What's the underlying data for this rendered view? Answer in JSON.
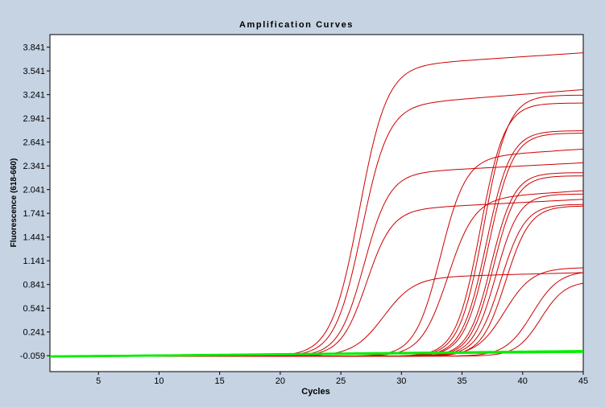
{
  "chart_data": {
    "type": "line",
    "title": "Amplification Curves",
    "xlabel": "Cycles",
    "ylabel": "Fluorescence (618-660)",
    "xlim": [
      1,
      45
    ],
    "ylim": [
      -0.26,
      4.0
    ],
    "x_ticks": [
      5,
      10,
      15,
      20,
      25,
      30,
      35,
      40,
      45
    ],
    "y_ticks": [
      -0.059,
      0.241,
      0.541,
      0.841,
      1.141,
      1.441,
      1.741,
      2.041,
      2.341,
      2.641,
      2.941,
      3.241,
      3.541,
      3.841
    ],
    "y_tick_labels": [
      "-0.059",
      "0.241",
      "0.541",
      "0.841",
      "1.141",
      "1.441",
      "1.741",
      "2.041",
      "2.341",
      "2.641",
      "2.941",
      "3.241",
      "3.541",
      "3.841"
    ],
    "grid": false,
    "colors": {
      "positive": "#cc0000",
      "negative": "#00ee00",
      "background": "#c5d3e3",
      "plot_bg": "#ffffff"
    },
    "curve_model": "sigmoid",
    "series": [
      {
        "color": "#cc0000",
        "threshold_cycle": 26.5,
        "plateau": 3.65,
        "slope": 1.15,
        "drift": 0.01
      },
      {
        "color": "#cc0000",
        "threshold_cycle": 26.7,
        "plateau": 3.15,
        "slope": 1.1,
        "drift": 0.012
      },
      {
        "color": "#cc0000",
        "threshold_cycle": 26.9,
        "plateau": 2.3,
        "slope": 1.05,
        "drift": 0.008
      },
      {
        "color": "#cc0000",
        "threshold_cycle": 27.1,
        "plateau": 1.84,
        "slope": 1.05,
        "drift": 0.008
      },
      {
        "color": "#cc0000",
        "threshold_cycle": 28.5,
        "plateau": 0.99,
        "slope": 1.25,
        "drift": 0.004
      },
      {
        "color": "#cc0000",
        "threshold_cycle": 33.2,
        "plateau": 2.5,
        "slope": 1.05,
        "drift": 0.01
      },
      {
        "color": "#cc0000",
        "threshold_cycle": 33.8,
        "plateau": 1.98,
        "slope": 1.1,
        "drift": 0.01
      },
      {
        "color": "#cc0000",
        "threshold_cycle": 36.5,
        "plateau": 3.2,
        "slope": 1.0,
        "drift": 0.0
      },
      {
        "color": "#cc0000",
        "threshold_cycle": 36.8,
        "plateau": 3.3,
        "slope": 1.0,
        "drift": 0.0
      },
      {
        "color": "#cc0000",
        "threshold_cycle": 37.0,
        "plateau": 2.85,
        "slope": 1.0,
        "drift": 0.0
      },
      {
        "color": "#cc0000",
        "threshold_cycle": 37.2,
        "plateau": 2.82,
        "slope": 1.0,
        "drift": 0.0
      },
      {
        "color": "#cc0000",
        "threshold_cycle": 37.4,
        "plateau": 2.32,
        "slope": 0.95,
        "drift": 0.0
      },
      {
        "color": "#cc0000",
        "threshold_cycle": 37.6,
        "plateau": 2.28,
        "slope": 0.95,
        "drift": 0.0
      },
      {
        "color": "#cc0000",
        "threshold_cycle": 37.8,
        "plateau": 2.05,
        "slope": 0.95,
        "drift": 0.0
      },
      {
        "color": "#cc0000",
        "threshold_cycle": 38.2,
        "plateau": 1.92,
        "slope": 1.0,
        "drift": 0.0
      },
      {
        "color": "#cc0000",
        "threshold_cycle": 38.6,
        "plateau": 1.9,
        "slope": 1.0,
        "drift": 0.0
      },
      {
        "color": "#cc0000",
        "threshold_cycle": 38.5,
        "plateau": 1.12,
        "slope": 1.15,
        "drift": 0.0
      },
      {
        "color": "#cc0000",
        "threshold_cycle": 40.8,
        "plateau": 1.08,
        "slope": 1.1,
        "drift": 0.0
      },
      {
        "color": "#cc0000",
        "threshold_cycle": 41.5,
        "plateau": 0.95,
        "slope": 1.0,
        "drift": 0.0
      },
      {
        "color": "#00ee00",
        "threshold_cycle": 99,
        "plateau": 0,
        "slope": 1.0,
        "drift": 0.0012,
        "baseline": -0.065
      },
      {
        "color": "#00ee00",
        "threshold_cycle": 99,
        "plateau": 0,
        "slope": 1.0,
        "drift": 0.0016,
        "baseline": -0.068
      },
      {
        "color": "#00ee00",
        "threshold_cycle": 99,
        "plateau": 0,
        "slope": 1.0,
        "drift": 0.0014,
        "baseline": -0.072
      }
    ]
  }
}
